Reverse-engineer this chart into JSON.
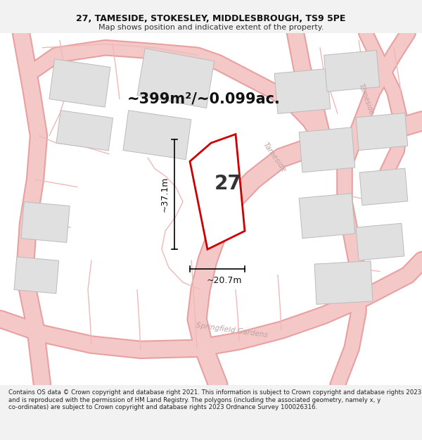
{
  "title_line1": "27, TAMESIDE, STOKESLEY, MIDDLESBROUGH, TS9 5PE",
  "title_line2": "Map shows position and indicative extent of the property.",
  "area_text": "~399m²/~0.099ac.",
  "number_label": "27",
  "dim_width": "~20.7m",
  "dim_height": "~37.1m",
  "footer_text": "Contains OS data © Crown copyright and database right 2021. This information is subject to Crown copyright and database rights 2023 and is reproduced with the permission of HM Land Registry. The polygons (including the associated geometry, namely x, y co-ordinates) are subject to Crown copyright and database rights 2023 Ordnance Survey 100026316.",
  "bg_color": "#f2f2f2",
  "map_bg": "#ffffff",
  "plot_color": "#cc0000",
  "road_fill": "#f5c8c8",
  "road_edge": "#e8a0a0",
  "building_fill": "#e0e0e0",
  "building_edge": "#bbbbbb",
  "street_label_color": "#c0a0a0",
  "title_fontsize": 9,
  "subtitle_fontsize": 8,
  "area_fontsize": 15,
  "number_fontsize": 20,
  "dim_fontsize": 9,
  "footer_fontsize": 6.2
}
